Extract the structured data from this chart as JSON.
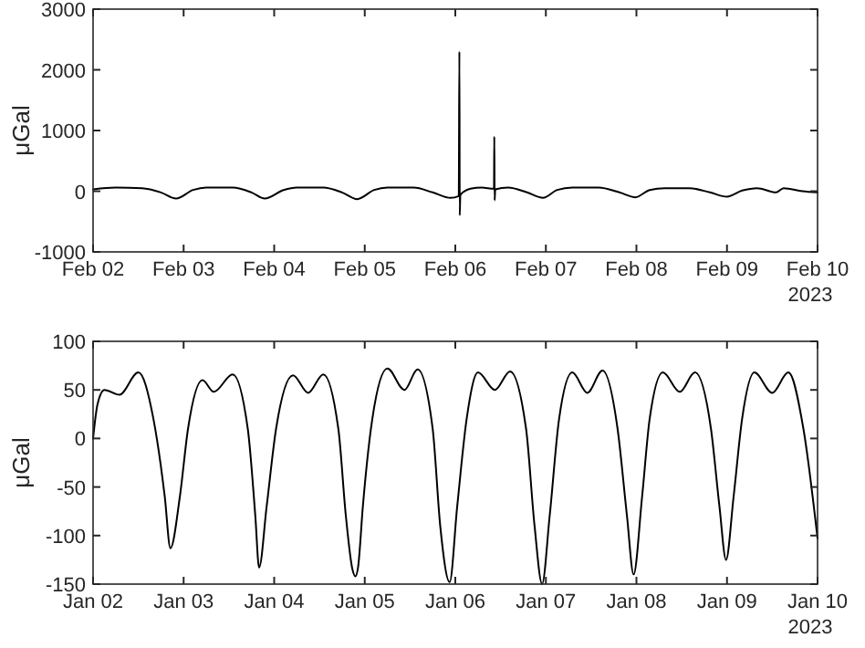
{
  "chart_data": [
    {
      "type": "line",
      "ylabel": "μGal",
      "annotations": [
        "2023"
      ],
      "color": "#000000",
      "grid": false,
      "marker": "none",
      "line_style": "solid",
      "xlim": [
        "2023-02-02",
        "2023-02-10"
      ],
      "xticks": [
        {
          "value": "2023-02-02",
          "label": "Feb 02"
        },
        {
          "value": "2023-02-03",
          "label": "Feb 03"
        },
        {
          "value": "2023-02-04",
          "label": "Feb 04"
        },
        {
          "value": "2023-02-05",
          "label": "Feb 05"
        },
        {
          "value": "2023-02-06",
          "label": "Feb 06"
        },
        {
          "value": "2023-02-07",
          "label": "Feb 07"
        },
        {
          "value": "2023-02-08",
          "label": "Feb 08"
        },
        {
          "value": "2023-02-09",
          "label": "Feb 09"
        },
        {
          "value": "2023-02-10",
          "label": "Feb 10"
        }
      ],
      "ylim": [
        -1000,
        3000
      ],
      "yticks": [
        -1000,
        0,
        1000,
        2000,
        3000
      ],
      "x": [
        "2023-02-02T00:00",
        "2023-02-02T06:00",
        "2023-02-02T13:00",
        "2023-02-02T18:00",
        "2023-02-02T22:00",
        "2023-02-03T02:30",
        "2023-02-03T06:00",
        "2023-02-03T13:00",
        "2023-02-03T18:00",
        "2023-02-03T21:30",
        "2023-02-04T02:30",
        "2023-02-04T06:00",
        "2023-02-04T13:00",
        "2023-02-04T18:00",
        "2023-02-04T22:00",
        "2023-02-05T02:30",
        "2023-02-05T06:00",
        "2023-02-05T13:00",
        "2023-02-05T18:00",
        "2023-02-05T22:45",
        "2023-02-06T00:55",
        "2023-02-06T01:05",
        "2023-02-06T01:10",
        "2023-02-06T01:20",
        "2023-02-06T04:00",
        "2023-02-06T07:00",
        "2023-02-06T10:15",
        "2023-02-06T10:20",
        "2023-02-06T10:25",
        "2023-02-06T10:35",
        "2023-02-06T14:00",
        "2023-02-06T19:00",
        "2023-02-06T23:15",
        "2023-02-07T03:00",
        "2023-02-07T07:00",
        "2023-02-07T14:00",
        "2023-02-07T19:30",
        "2023-02-07T23:45",
        "2023-02-08T03:30",
        "2023-02-08T07:30",
        "2023-02-08T14:00",
        "2023-02-08T19:30",
        "2023-02-09T00:00",
        "2023-02-09T04:00",
        "2023-02-09T08:00",
        "2023-02-09T13:00",
        "2023-02-09T15:00",
        "2023-02-09T20:00",
        "2023-02-10T00:00"
      ],
      "values": [
        30,
        60,
        50,
        -20,
        -120,
        20,
        60,
        60,
        -20,
        -120,
        20,
        60,
        60,
        -20,
        -130,
        20,
        60,
        60,
        -20,
        -110,
        -80,
        2300,
        -400,
        -60,
        40,
        60,
        40,
        900,
        -150,
        30,
        60,
        -20,
        -110,
        20,
        60,
        60,
        -20,
        -100,
        20,
        50,
        50,
        -20,
        -90,
        10,
        50,
        -20,
        50,
        0,
        -20
      ]
    },
    {
      "type": "line",
      "ylabel": "μGal",
      "annotations": [
        "2023"
      ],
      "color": "#000000",
      "grid": false,
      "marker": "none",
      "line_style": "solid",
      "xlim": [
        "2023-01-02",
        "2023-01-10"
      ],
      "xticks": [
        {
          "value": "2023-01-02",
          "label": "Jan 02"
        },
        {
          "value": "2023-01-03",
          "label": "Jan 03"
        },
        {
          "value": "2023-01-04",
          "label": "Jan 04"
        },
        {
          "value": "2023-01-05",
          "label": "Jan 05"
        },
        {
          "value": "2023-01-06",
          "label": "Jan 06"
        },
        {
          "value": "2023-01-07",
          "label": "Jan 07"
        },
        {
          "value": "2023-01-08",
          "label": "Jan 08"
        },
        {
          "value": "2023-01-09",
          "label": "Jan 09"
        },
        {
          "value": "2023-01-10",
          "label": "Jan 10"
        }
      ],
      "ylim": [
        -150,
        100
      ],
      "yticks": [
        -150,
        -100,
        -50,
        0,
        50,
        100
      ],
      "x": [
        "2023-01-02T00:00",
        "2023-01-02T01:10",
        "2023-01-02T03:00",
        "2023-01-02T07:00",
        "2023-01-02T12:00",
        "2023-01-02T16:00",
        "2023-01-02T19:00",
        "2023-01-02T20:30",
        "2023-01-02T23:00",
        "2023-01-03T01:10",
        "2023-01-03T05:00",
        "2023-01-03T08:00",
        "2023-01-03T13:00",
        "2023-01-03T17:00",
        "2023-01-03T19:00",
        "2023-01-03T20:00",
        "2023-01-03T22:00",
        "2023-01-04T00:30",
        "2023-01-04T05:00",
        "2023-01-04T09:00",
        "2023-01-04T13:00",
        "2023-01-04T17:00",
        "2023-01-04T19:00",
        "2023-01-04T20:45",
        "2023-01-04T21:30",
        "2023-01-04T22:15",
        "2023-01-04T23:30",
        "2023-01-05T02:00",
        "2023-01-05T06:00",
        "2023-01-05T10:30",
        "2023-01-05T14:00",
        "2023-01-05T18:00",
        "2023-01-05T20:00",
        "2023-01-05T22:30",
        "2023-01-06T00:30",
        "2023-01-06T03:00",
        "2023-01-06T06:00",
        "2023-01-06T10:30",
        "2023-01-06T14:30",
        "2023-01-06T18:45",
        "2023-01-06T21:00",
        "2023-01-06T23:00",
        "2023-01-07T01:00",
        "2023-01-07T03:30",
        "2023-01-07T07:00",
        "2023-01-07T11:00",
        "2023-01-07T15:00",
        "2023-01-07T19:00",
        "2023-01-07T21:30",
        "2023-01-07T23:15",
        "2023-01-08T01:30",
        "2023-01-08T03:30",
        "2023-01-08T07:00",
        "2023-01-08T11:30",
        "2023-01-08T15:30",
        "2023-01-08T19:45",
        "2023-01-08T22:00",
        "2023-01-08T23:45",
        "2023-01-09T01:45",
        "2023-01-09T04:00",
        "2023-01-09T07:15",
        "2023-01-09T12:00",
        "2023-01-09T16:15",
        "2023-01-09T20:15",
        "2023-01-10T00:00"
      ],
      "values": [
        0,
        35,
        50,
        45,
        68,
        20,
        -60,
        -113,
        -60,
        10,
        60,
        48,
        66,
        10,
        -80,
        -133,
        -70,
        10,
        65,
        47,
        66,
        10,
        -80,
        -135,
        -142,
        -132,
        -70,
        20,
        72,
        50,
        71,
        10,
        -90,
        -148,
        -70,
        20,
        68,
        50,
        69,
        10,
        -90,
        -150,
        -80,
        20,
        68,
        47,
        70,
        10,
        -80,
        -140,
        -60,
        20,
        68,
        48,
        68,
        10,
        -70,
        -125,
        -60,
        20,
        68,
        47,
        68,
        10,
        -103
      ]
    }
  ]
}
